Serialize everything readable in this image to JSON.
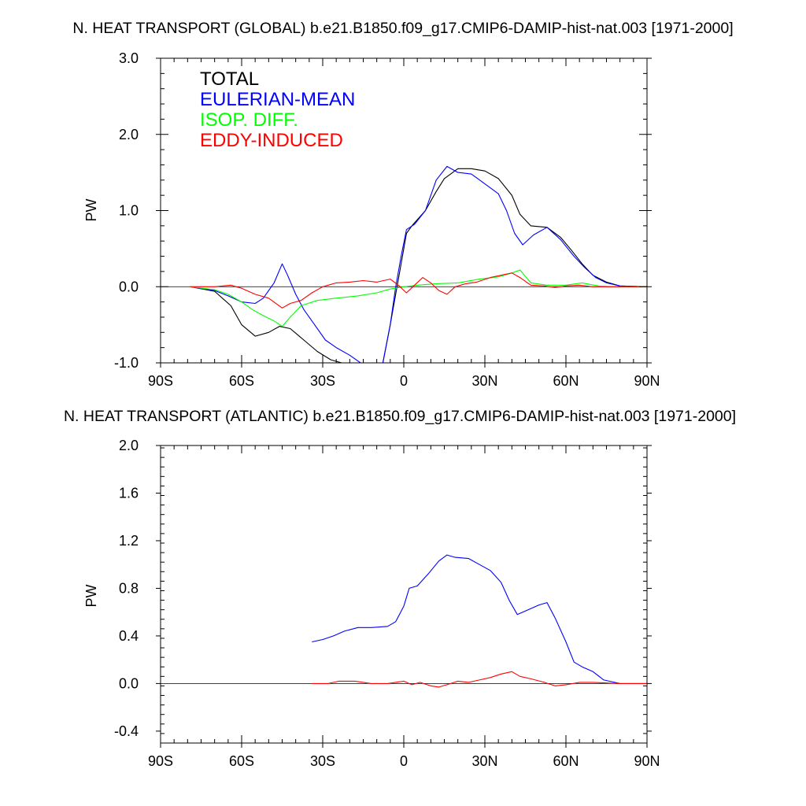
{
  "chart_data": [
    {
      "type": "line",
      "title": "N. HEAT TRANSPORT (GLOBAL) b.e21.B1850.f09_g17.CMIP6-DAMIP-hist-nat.003 [1971-2000]",
      "xlabel": "",
      "ylabel": "PW",
      "xlim": [
        -90,
        90
      ],
      "ylim": [
        -1.0,
        3.0
      ],
      "x_ticks": [
        -90,
        -60,
        -30,
        0,
        30,
        60,
        90
      ],
      "x_tick_labels": [
        "90S",
        "60S",
        "30S",
        "0",
        "30N",
        "60N",
        "90N"
      ],
      "y_ticks": [
        -1.0,
        0.0,
        1.0,
        2.0,
        3.0
      ],
      "y_tick_labels": [
        "-1.0",
        "0.0",
        "1.0",
        "2.0",
        "3.0"
      ],
      "zero_line": true,
      "legend_position": "top-left",
      "series": [
        {
          "name": "TOTAL",
          "color": "#000000",
          "points": [
            [
              -79,
              0.0
            ],
            [
              -70,
              -0.06
            ],
            [
              -64,
              -0.25
            ],
            [
              -60,
              -0.5
            ],
            [
              -55,
              -0.65
            ],
            [
              -50,
              -0.6
            ],
            [
              -46,
              -0.52
            ],
            [
              -42,
              -0.55
            ],
            [
              -37,
              -0.7
            ],
            [
              -32,
              -0.85
            ],
            [
              -27,
              -0.96
            ],
            [
              -22,
              -1.01
            ],
            [
              -17,
              -1.04
            ],
            [
              -8,
              -1.05
            ],
            [
              -5,
              -0.5
            ],
            [
              -3,
              -0.1
            ],
            [
              -1,
              0.3
            ],
            [
              1,
              0.7
            ],
            [
              3,
              0.8
            ],
            [
              8,
              1.0
            ],
            [
              12,
              1.25
            ],
            [
              15,
              1.42
            ],
            [
              20,
              1.55
            ],
            [
              25,
              1.55
            ],
            [
              30,
              1.52
            ],
            [
              35,
              1.42
            ],
            [
              40,
              1.2
            ],
            [
              43,
              0.95
            ],
            [
              47,
              0.8
            ],
            [
              53,
              0.78
            ],
            [
              58,
              0.65
            ],
            [
              62,
              0.48
            ],
            [
              66,
              0.3
            ],
            [
              70,
              0.15
            ],
            [
              75,
              0.06
            ],
            [
              80,
              0.01
            ],
            [
              90,
              0.0
            ]
          ]
        },
        {
          "name": "EULERIAN-MEAN",
          "color": "#0000ff",
          "points": [
            [
              -79,
              0.0
            ],
            [
              -70,
              -0.05
            ],
            [
              -65,
              -0.12
            ],
            [
              -60,
              -0.2
            ],
            [
              -55,
              -0.22
            ],
            [
              -52,
              -0.15
            ],
            [
              -48,
              0.05
            ],
            [
              -45,
              0.3
            ],
            [
              -43,
              0.15
            ],
            [
              -40,
              -0.1
            ],
            [
              -37,
              -0.3
            ],
            [
              -33,
              -0.5
            ],
            [
              -29,
              -0.7
            ],
            [
              -25,
              -0.8
            ],
            [
              -20,
              -0.9
            ],
            [
              -16,
              -1.0
            ],
            [
              -8,
              -1.05
            ],
            [
              -5,
              -0.5
            ],
            [
              -3,
              0.0
            ],
            [
              -1,
              0.4
            ],
            [
              1,
              0.75
            ],
            [
              4,
              0.82
            ],
            [
              8,
              1.0
            ],
            [
              12,
              1.4
            ],
            [
              16,
              1.58
            ],
            [
              20,
              1.5
            ],
            [
              25,
              1.48
            ],
            [
              30,
              1.35
            ],
            [
              35,
              1.22
            ],
            [
              38,
              1.0
            ],
            [
              41,
              0.7
            ],
            [
              44,
              0.55
            ],
            [
              48,
              0.68
            ],
            [
              53,
              0.78
            ],
            [
              58,
              0.62
            ],
            [
              63,
              0.4
            ],
            [
              67,
              0.25
            ],
            [
              71,
              0.12
            ],
            [
              75,
              0.05
            ],
            [
              80,
              0.01
            ],
            [
              90,
              0.0
            ]
          ]
        },
        {
          "name": "ISOP. DIFF.",
          "color": "#00ff00",
          "points": [
            [
              -79,
              0.0
            ],
            [
              -70,
              -0.04
            ],
            [
              -65,
              -0.1
            ],
            [
              -60,
              -0.2
            ],
            [
              -56,
              -0.3
            ],
            [
              -52,
              -0.38
            ],
            [
              -48,
              -0.45
            ],
            [
              -45,
              -0.52
            ],
            [
              -42,
              -0.4
            ],
            [
              -38,
              -0.25
            ],
            [
              -32,
              -0.18
            ],
            [
              -25,
              -0.15
            ],
            [
              -17,
              -0.12
            ],
            [
              -10,
              -0.08
            ],
            [
              -5,
              -0.03
            ],
            [
              0,
              0.0
            ],
            [
              5,
              0.02
            ],
            [
              12,
              0.04
            ],
            [
              20,
              0.05
            ],
            [
              28,
              0.1
            ],
            [
              35,
              0.13
            ],
            [
              40,
              0.18
            ],
            [
              43,
              0.22
            ],
            [
              47,
              0.05
            ],
            [
              53,
              0.02
            ],
            [
              60,
              0.02
            ],
            [
              66,
              0.05
            ],
            [
              72,
              0.01
            ],
            [
              78,
              0.0
            ],
            [
              90,
              0.0
            ]
          ]
        },
        {
          "name": "EDDY-INDUCED",
          "color": "#ff0000",
          "points": [
            [
              -79,
              0.0
            ],
            [
              -70,
              0.0
            ],
            [
              -64,
              0.02
            ],
            [
              -60,
              -0.02
            ],
            [
              -55,
              -0.1
            ],
            [
              -50,
              -0.15
            ],
            [
              -45,
              -0.28
            ],
            [
              -42,
              -0.22
            ],
            [
              -38,
              -0.18
            ],
            [
              -34,
              -0.08
            ],
            [
              -30,
              0.0
            ],
            [
              -25,
              0.05
            ],
            [
              -20,
              0.06
            ],
            [
              -15,
              0.08
            ],
            [
              -10,
              0.06
            ],
            [
              -5,
              0.1
            ],
            [
              -2,
              0.02
            ],
            [
              1,
              -0.08
            ],
            [
              4,
              0.02
            ],
            [
              7,
              0.12
            ],
            [
              10,
              0.05
            ],
            [
              13,
              -0.05
            ],
            [
              16,
              -0.1
            ],
            [
              19,
              0.0
            ],
            [
              23,
              0.04
            ],
            [
              27,
              0.06
            ],
            [
              32,
              0.12
            ],
            [
              36,
              0.15
            ],
            [
              40,
              0.18
            ],
            [
              43,
              0.12
            ],
            [
              47,
              0.02
            ],
            [
              52,
              0.01
            ],
            [
              56,
              -0.01
            ],
            [
              60,
              0.01
            ],
            [
              65,
              0.02
            ],
            [
              70,
              0.0
            ],
            [
              80,
              0.0
            ],
            [
              90,
              0.0
            ]
          ]
        }
      ]
    },
    {
      "type": "line",
      "title": "N. HEAT TRANSPORT (ATLANTIC) b.e21.B1850.f09_g17.CMIP6-DAMIP-hist-nat.003 [1971-2000]",
      "xlabel": "",
      "ylabel": "PW",
      "xlim": [
        -90,
        90
      ],
      "ylim": [
        -0.5,
        2.0
      ],
      "x_ticks": [
        -90,
        -60,
        -30,
        0,
        30,
        60,
        90
      ],
      "x_tick_labels": [
        "90S",
        "60S",
        "30S",
        "0",
        "30N",
        "60N",
        "90N"
      ],
      "y_ticks": [
        -0.4,
        0.0,
        0.4,
        0.8,
        1.2,
        1.6,
        2.0
      ],
      "y_tick_labels": [
        "-0.4",
        "0.0",
        "0.4",
        "0.8",
        "1.2",
        "1.6",
        "2.0"
      ],
      "zero_line": true,
      "series": [
        {
          "name": "EULERIAN-MEAN",
          "color": "#0000ff",
          "points": [
            [
              -34,
              0.35
            ],
            [
              -30,
              0.37
            ],
            [
              -26,
              0.4
            ],
            [
              -22,
              0.44
            ],
            [
              -17,
              0.47
            ],
            [
              -12,
              0.47
            ],
            [
              -6,
              0.48
            ],
            [
              -3,
              0.52
            ],
            [
              0,
              0.65
            ],
            [
              2,
              0.8
            ],
            [
              5,
              0.82
            ],
            [
              9,
              0.92
            ],
            [
              13,
              1.03
            ],
            [
              16,
              1.08
            ],
            [
              19,
              1.06
            ],
            [
              24,
              1.05
            ],
            [
              28,
              1.0
            ],
            [
              32,
              0.95
            ],
            [
              36,
              0.85
            ],
            [
              39,
              0.7
            ],
            [
              42,
              0.58
            ],
            [
              46,
              0.62
            ],
            [
              50,
              0.66
            ],
            [
              53,
              0.68
            ],
            [
              56,
              0.55
            ],
            [
              60,
              0.35
            ],
            [
              63,
              0.18
            ],
            [
              66,
              0.14
            ],
            [
              70,
              0.1
            ],
            [
              74,
              0.03
            ],
            [
              80,
              0.0
            ],
            [
              90,
              0.0
            ]
          ]
        },
        {
          "name": "EDDY-INDUCED",
          "color": "#ff0000",
          "points": [
            [
              -34,
              0.0
            ],
            [
              -28,
              0.0
            ],
            [
              -24,
              0.02
            ],
            [
              -18,
              0.02
            ],
            [
              -12,
              0.0
            ],
            [
              -6,
              0.0
            ],
            [
              0,
              0.02
            ],
            [
              3,
              -0.01
            ],
            [
              6,
              0.01
            ],
            [
              10,
              -0.02
            ],
            [
              13,
              -0.03
            ],
            [
              16,
              -0.01
            ],
            [
              20,
              0.02
            ],
            [
              24,
              0.01
            ],
            [
              28,
              0.03
            ],
            [
              32,
              0.05
            ],
            [
              36,
              0.08
            ],
            [
              40,
              0.1
            ],
            [
              43,
              0.06
            ],
            [
              47,
              0.04
            ],
            [
              52,
              0.01
            ],
            [
              56,
              -0.02
            ],
            [
              60,
              -0.01
            ],
            [
              65,
              0.01
            ],
            [
              70,
              0.01
            ],
            [
              80,
              0.0
            ],
            [
              90,
              0.0
            ]
          ]
        }
      ]
    }
  ]
}
